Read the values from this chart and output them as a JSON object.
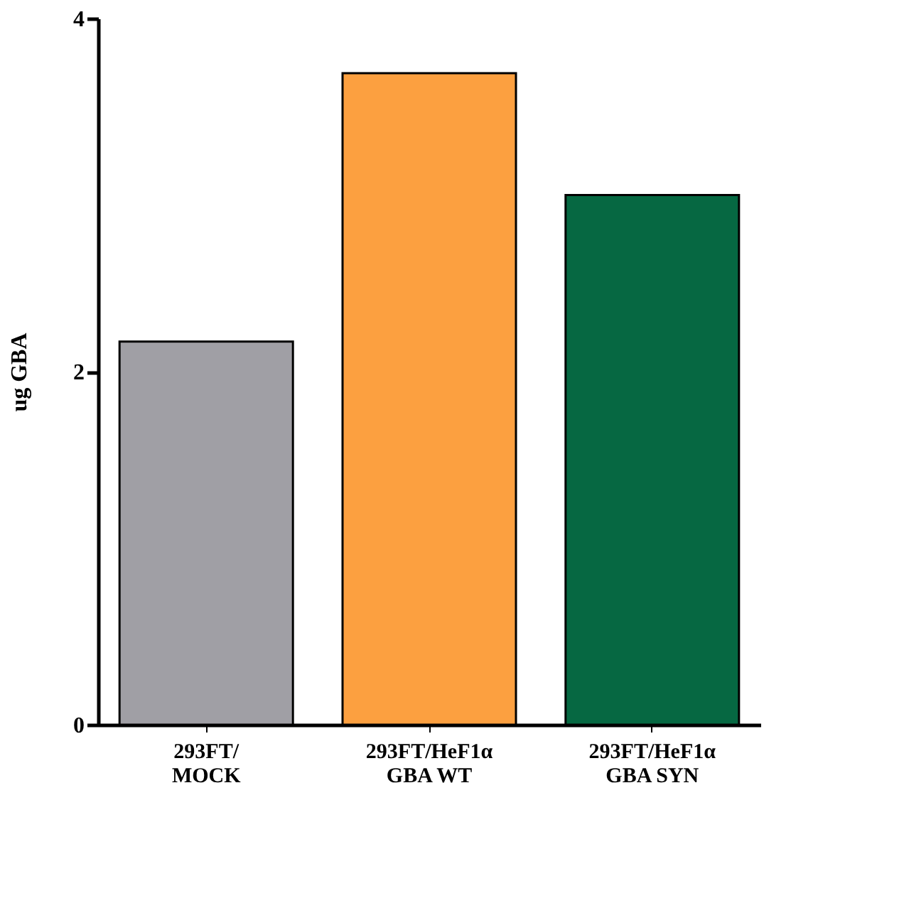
{
  "chart_data": {
    "type": "bar",
    "ylabel": "ug GBA",
    "categories": [
      "293FT/\nMOCK",
      "293FT/HeF1α\nGBA WT",
      "293FT/HeF1α\nGBA SYN"
    ],
    "values": [
      2.17,
      3.69,
      3.0
    ],
    "colors": [
      "#a09fa5",
      "#fca040",
      "#066842"
    ],
    "ylim": [
      0,
      4
    ],
    "yticks": [
      0,
      2,
      4
    ],
    "grid": false
  }
}
